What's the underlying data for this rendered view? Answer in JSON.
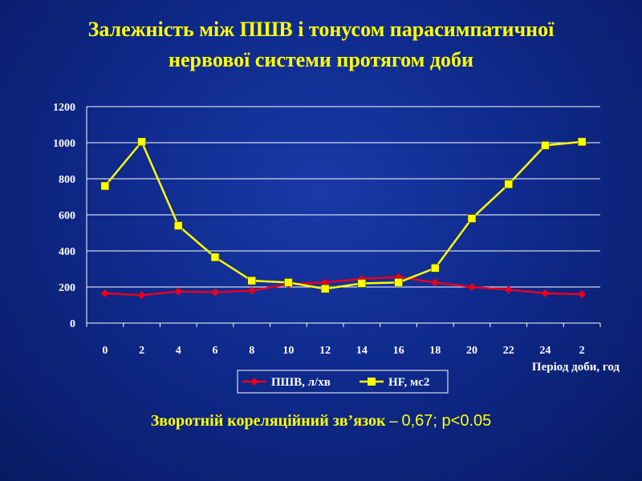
{
  "title_line1": "Залежність між ПШВ і тонусом парасимпатичної",
  "title_line2": "нервової системи протягом доби",
  "footer_main": "Зворотній кореляційний зв’язок – ",
  "footer_stats": "0,67; p<0.05",
  "colors": {
    "series1": "#e8001e",
    "series2": "#ffff00",
    "text": "#ffffff",
    "accent": "#ffff00",
    "grid": "#ffffff"
  },
  "chart_data": {
    "type": "line",
    "x": [
      "0",
      "2",
      "4",
      "6",
      "8",
      "10",
      "12",
      "14",
      "16",
      "18",
      "20",
      "22",
      "24",
      "2"
    ],
    "ylim": [
      0,
      1200
    ],
    "yticks": [
      0,
      200,
      400,
      600,
      800,
      1000,
      1200
    ],
    "xlabel": "Період доби, год",
    "ylabel": "",
    "grid": true,
    "legend": "bottom-center",
    "series": [
      {
        "name": "ПШВ, л/хв",
        "marker": "diamond",
        "values": [
          165,
          155,
          175,
          170,
          180,
          215,
          225,
          245,
          255,
          225,
          200,
          185,
          165,
          160
        ]
      },
      {
        "name": "HF, мс2",
        "marker": "square",
        "values": [
          760,
          1005,
          540,
          365,
          235,
          225,
          190,
          220,
          225,
          305,
          580,
          770,
          985,
          1005
        ]
      }
    ]
  }
}
